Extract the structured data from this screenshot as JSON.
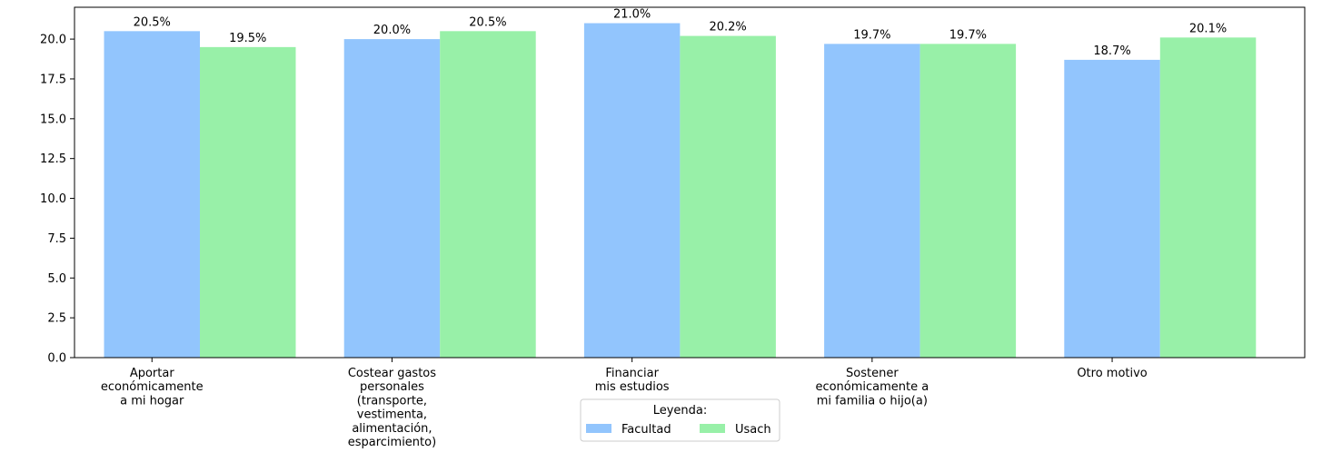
{
  "chart_data": {
    "type": "bar",
    "categories": [
      [
        "Aportar",
        "económicamente",
        "a mi hogar"
      ],
      [
        "Costear gastos",
        "personales",
        "(transporte,",
        "vestimenta,",
        "alimentación,",
        "esparcimiento)"
      ],
      [
        "Financiar",
        "mis estudios"
      ],
      [
        "Sostener",
        "económicamente a",
        "mi familia o hijo(a)"
      ],
      [
        "Otro motivo"
      ]
    ],
    "series": [
      {
        "name": "Facultad",
        "color": "#92c5fd",
        "values": [
          20.5,
          20.0,
          21.0,
          19.7,
          18.7
        ]
      },
      {
        "name": "Usach",
        "color": "#98f0a8",
        "values": [
          19.5,
          20.5,
          20.2,
          19.7,
          20.1
        ]
      }
    ],
    "data_labels": [
      [
        "20.5%",
        "20.0%",
        "21.0%",
        "19.7%",
        "18.7%"
      ],
      [
        "19.5%",
        "20.5%",
        "20.2%",
        "19.7%",
        "20.1%"
      ]
    ],
    "yticks": [
      "0.0",
      "2.5",
      "5.0",
      "7.5",
      "10.0",
      "12.5",
      "15.0",
      "17.5",
      "20.0"
    ],
    "ylim": [
      0,
      22.0
    ],
    "title": "",
    "xlabel": "",
    "ylabel": "",
    "legend": {
      "title": "Leyenda:",
      "placement": "bottom-center"
    },
    "grid": false
  }
}
